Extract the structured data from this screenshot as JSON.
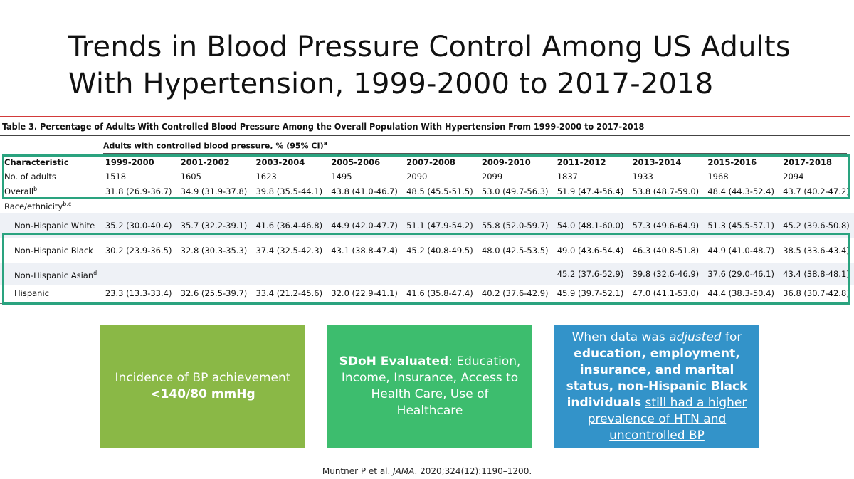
{
  "title": {
    "line1": "Trends in Blood Pressure Control Among US Adults",
    "line2": "With Hypertension, 1999-2000 to 2017-2018"
  },
  "table": {
    "caption": "Table 3. Percentage of Adults With Controlled Blood Pressure Among the Overall Population With Hypertension From 1999-2000 to 2017-2018",
    "column_group": "Adults with controlled blood pressure, % (95% CI)",
    "column_group_note": "a",
    "header": {
      "label": "Characteristic",
      "periods": [
        "1999-2000",
        "2001-2002",
        "2003-2004",
        "2005-2006",
        "2007-2008",
        "2009-2010",
        "2011-2012",
        "2013-2014",
        "2015-2016",
        "2017-2018"
      ]
    },
    "rows": {
      "n_adults": {
        "label": "No. of adults",
        "values": [
          "1518",
          "1605",
          "1623",
          "1495",
          "2090",
          "2099",
          "1837",
          "1933",
          "1968",
          "2094"
        ]
      },
      "overall": {
        "label": "Overall",
        "note": "b",
        "values": [
          "31.8 (26.9-36.7)",
          "34.9 (31.9-37.8)",
          "39.8 (35.5-44.1)",
          "43.8 (41.0-46.7)",
          "48.5 (45.5-51.5)",
          "53.0 (49.7-56.3)",
          "51.9 (47.4-56.4)",
          "53.8 (48.7-59.0)",
          "48.4 (44.3-52.4)",
          "43.7 (40.2-47.2)"
        ]
      },
      "race_header": {
        "label": "Race/ethnicity",
        "note": "b,c"
      },
      "white": {
        "label": "Non-Hispanic White",
        "values": [
          "35.2 (30.0-40.4)",
          "35.7 (32.2-39.1)",
          "41.6 (36.4-46.8)",
          "44.9 (42.0-47.7)",
          "51.1 (47.9-54.2)",
          "55.8 (52.0-59.7)",
          "54.0 (48.1-60.0)",
          "57.3 (49.6-64.9)",
          "51.3 (45.5-57.1)",
          "45.2 (39.6-50.8)"
        ]
      },
      "black": {
        "label": "Non-Hispanic Black",
        "values": [
          "30.2 (23.9-36.5)",
          "32.8 (30.3-35.3)",
          "37.4 (32.5-42.3)",
          "43.1 (38.8-47.4)",
          "45.2 (40.8-49.5)",
          "48.0 (42.5-53.5)",
          "49.0 (43.6-54.4)",
          "46.3 (40.8-51.8)",
          "44.9 (41.0-48.7)",
          "38.5 (33.6-43.4)"
        ]
      },
      "asian": {
        "label": "Non-Hispanic Asian",
        "note": "d",
        "values": [
          "",
          "",
          "",
          "",
          "",
          "",
          "45.2 (37.6-52.9)",
          "39.8 (32.6-46.9)",
          "37.6 (29.0-46.1)",
          "43.4 (38.8-48.1)"
        ]
      },
      "hispanic": {
        "label": "Hispanic",
        "values": [
          "23.3 (13.3-33.4)",
          "32.6 (25.5-39.7)",
          "33.4 (21.2-45.6)",
          "32.0 (22.9-41.1)",
          "41.6 (35.8-47.4)",
          "40.2 (37.6-42.9)",
          "45.9 (39.7-52.1)",
          "47.0 (41.1-53.0)",
          "44.4 (38.3-50.4)",
          "36.8 (30.7-42.8)"
        ]
      }
    }
  },
  "cards": {
    "left": {
      "line1": "Incidence of BP achievement",
      "line2": "<140/80 mmHg"
    },
    "middle": {
      "bold": "SDoH Evaluated",
      "rest": ": Education, Income, Insurance, Access to Health Care, Use of Healthcare"
    },
    "right": {
      "p1": "When data was ",
      "p2": "adjusted",
      "p3": " for ",
      "p4": "education, employment, insurance, and marital status, non-Hispanic Black individuals",
      "p5": "still had a higher prevalence of HTN and uncontrolled BP"
    }
  },
  "citation": {
    "authors": "Muntner P et al. ",
    "journal": "JAMA",
    "details": ". 2020;324(12):1190–1200."
  },
  "colors": {
    "red_rule": "#d23a3a",
    "highlight": "#2aa37f",
    "card_green": "#8ab846",
    "card_mint": "#3dbd6e",
    "card_blue": "#3393c9"
  }
}
